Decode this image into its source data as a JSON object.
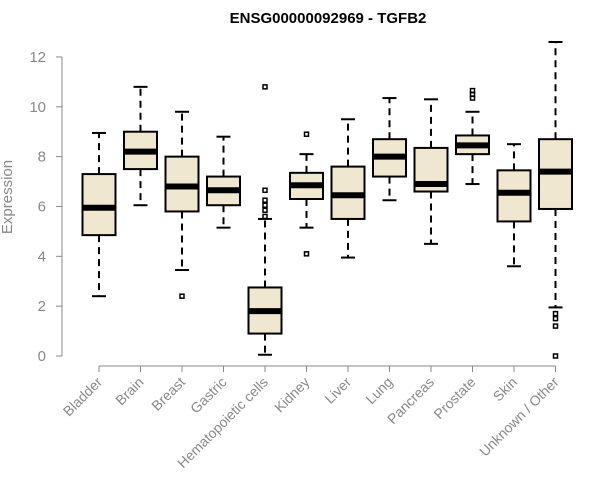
{
  "chart_data": {
    "type": "box",
    "title": "ENSG00000092969 - TGFB2",
    "xlabel": "",
    "ylabel": "Expression",
    "ylim": [
      0,
      12.6
    ],
    "yticks": [
      0,
      2,
      4,
      6,
      8,
      10,
      12
    ],
    "box_fill": "#efe7cf",
    "categories": [
      "Bladder",
      "Brain",
      "Breast",
      "Gastric",
      "Hematopoietic cells",
      "Kidney",
      "Liver",
      "Lung",
      "Pancreas",
      "Prostate",
      "Skin",
      "Unknown / Other"
    ],
    "boxes": [
      {
        "name": "Bladder",
        "whisker_low": 2.4,
        "q1": 4.85,
        "median": 5.95,
        "q3": 7.3,
        "whisker_high": 8.95,
        "outliers": []
      },
      {
        "name": "Brain",
        "whisker_low": 6.05,
        "q1": 7.5,
        "median": 8.2,
        "q3": 9.0,
        "whisker_high": 10.8,
        "outliers": []
      },
      {
        "name": "Breast",
        "whisker_low": 3.45,
        "q1": 5.8,
        "median": 6.8,
        "q3": 8.0,
        "whisker_high": 9.8,
        "outliers": [
          2.4
        ]
      },
      {
        "name": "Gastric",
        "whisker_low": 5.15,
        "q1": 6.05,
        "median": 6.65,
        "q3": 7.2,
        "whisker_high": 8.8,
        "outliers": []
      },
      {
        "name": "Hematopoietic cells",
        "whisker_low": 0.05,
        "q1": 0.9,
        "median": 1.8,
        "q3": 2.75,
        "whisker_high": 5.5,
        "outliers": [
          5.6,
          5.85,
          6.05,
          6.25,
          6.65,
          10.8
        ]
      },
      {
        "name": "Kidney",
        "whisker_low": 5.15,
        "q1": 6.3,
        "median": 6.85,
        "q3": 7.35,
        "whisker_high": 8.1,
        "outliers": [
          4.1,
          8.9
        ]
      },
      {
        "name": "Liver",
        "whisker_low": 3.95,
        "q1": 5.5,
        "median": 6.45,
        "q3": 7.6,
        "whisker_high": 9.5,
        "outliers": []
      },
      {
        "name": "Lung",
        "whisker_low": 6.25,
        "q1": 7.2,
        "median": 8.0,
        "q3": 8.7,
        "whisker_high": 10.35,
        "outliers": []
      },
      {
        "name": "Pancreas",
        "whisker_low": 4.5,
        "q1": 6.6,
        "median": 6.9,
        "q3": 8.35,
        "whisker_high": 10.3,
        "outliers": []
      },
      {
        "name": "Prostate",
        "whisker_low": 6.9,
        "q1": 8.1,
        "median": 8.45,
        "q3": 8.85,
        "whisker_high": 9.8,
        "outliers": [
          10.35,
          10.5,
          10.65
        ]
      },
      {
        "name": "Skin",
        "whisker_low": 3.6,
        "q1": 5.4,
        "median": 6.55,
        "q3": 7.45,
        "whisker_high": 8.5,
        "outliers": []
      },
      {
        "name": "Unknown / Other",
        "whisker_low": 1.95,
        "q1": 5.9,
        "median": 7.4,
        "q3": 8.7,
        "whisker_high": 12.6,
        "outliers": [
          0.0,
          1.2,
          1.5,
          1.7
        ]
      }
    ]
  }
}
